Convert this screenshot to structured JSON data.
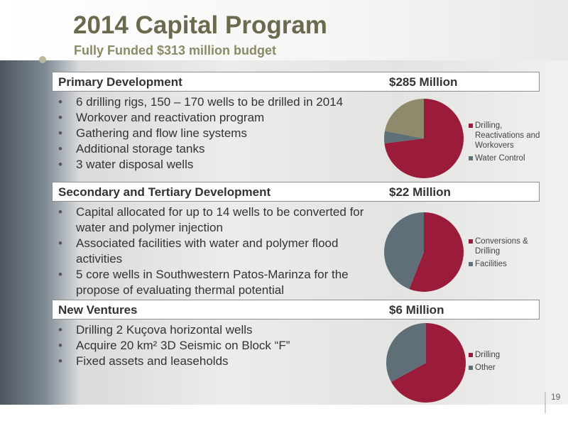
{
  "header": {
    "title": "2014 Capital Program",
    "subtitle": "Fully Funded $313 million budget"
  },
  "sections": [
    {
      "heading": "Primary Development",
      "amount": "$285 Million",
      "bullets": [
        "6 drilling rigs, 150 – 170 wells to be drilled in 2014",
        "Workover and reactivation program",
        "Gathering and flow line systems",
        "Additional storage tanks",
        "3 water disposal wells"
      ],
      "chart": {
        "type": "pie",
        "categories": [
          "Drilling, Reactivations and Workovers",
          "Water Control",
          null
        ],
        "values": [
          73,
          5,
          22
        ],
        "colors": [
          "#9b1b3a",
          "#5f6f78",
          "#8e8a6c"
        ]
      }
    },
    {
      "heading": "Secondary and Tertiary Development",
      "amount": "$22 Million",
      "bullets": [
        "Capital allocated for up to 14 wells to be converted for water and polymer injection",
        "Associated facilities with water and polymer flood activities",
        "5 core wells in Southwestern Patos-Marinza for the propose of evaluating thermal potential"
      ],
      "chart": {
        "type": "pie",
        "categories": [
          "Conversions & Drilling",
          "Facilities"
        ],
        "values": [
          56,
          44
        ],
        "colors": [
          "#9b1b3a",
          "#5f6f78"
        ]
      }
    },
    {
      "heading": "New Ventures",
      "amount": "$6 Million",
      "bullets": [
        "Drilling 2 Kuçova horizontal wells",
        "Acquire 20 km² 3D Seismic on Block “F”",
        "Fixed assets and leaseholds"
      ],
      "chart": {
        "type": "pie",
        "categories": [
          "Drilling",
          "Other"
        ],
        "values": [
          67,
          33
        ],
        "colors": [
          "#9b1b3a",
          "#5f6f78"
        ]
      }
    }
  ],
  "page_number": "19"
}
